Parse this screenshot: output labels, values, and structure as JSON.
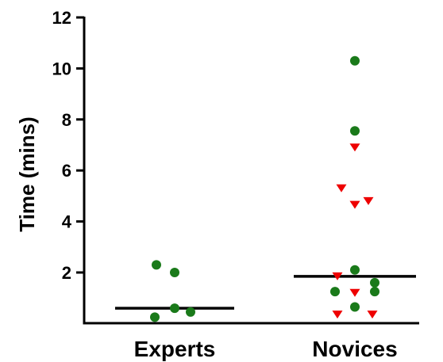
{
  "chart_data": {
    "type": "scatter",
    "title": "",
    "xlabel": "",
    "ylabel": "Time (mins)",
    "categories": [
      "Experts",
      "Novices"
    ],
    "ylim": [
      0,
      12
    ],
    "yticks": [
      "2",
      "4",
      "6",
      "8",
      "10",
      "12"
    ],
    "grid": false,
    "legend": "none",
    "series": [
      {
        "marker": "circle",
        "color": "#1a7a1a",
        "points": [
          {
            "category": "Experts",
            "y": 2.3
          },
          {
            "category": "Experts",
            "y": 2.0
          },
          {
            "category": "Experts",
            "y": 0.6
          },
          {
            "category": "Experts",
            "y": 0.45
          },
          {
            "category": "Experts",
            "y": 0.25
          },
          {
            "category": "Novices",
            "y": 10.3
          },
          {
            "category": "Novices",
            "y": 7.55
          },
          {
            "category": "Novices",
            "y": 2.1
          },
          {
            "category": "Novices",
            "y": 1.6
          },
          {
            "category": "Novices",
            "y": 1.25
          },
          {
            "category": "Novices",
            "y": 1.25
          },
          {
            "category": "Novices",
            "y": 0.65
          }
        ]
      },
      {
        "marker": "triangle-down",
        "color": "#ee0000",
        "points": [
          {
            "category": "Novices",
            "y": 6.9
          },
          {
            "category": "Novices",
            "y": 5.3
          },
          {
            "category": "Novices",
            "y": 4.8
          },
          {
            "category": "Novices",
            "y": 4.65
          },
          {
            "category": "Novices",
            "y": 1.85
          },
          {
            "category": "Novices",
            "y": 1.2
          },
          {
            "category": "Novices",
            "y": 0.35
          },
          {
            "category": "Novices",
            "y": 0.35
          }
        ]
      }
    ],
    "medians": [
      {
        "category": "Experts",
        "y": 0.6
      },
      {
        "category": "Novices",
        "y": 1.85
      }
    ]
  }
}
